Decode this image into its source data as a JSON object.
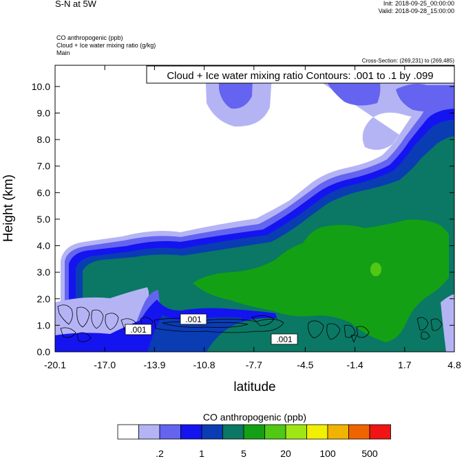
{
  "header": {
    "title": "S-N at 5W",
    "init": "Init: 2018-09-25_00:00:00",
    "valid": "Valid: 2018-09-28_15:00:00",
    "field_1": "CO anthropogenic   (ppb)",
    "field_2": "Cloud + Ice water mixing ratio   (g/kg)",
    "field_3": "Main",
    "cross_section": "Cross-Section: (269,231) to (269,485)"
  },
  "chart_data": {
    "type": "heatmap",
    "contour_title": "Cloud + Ice water mixing ratio Contours: .001 to .1 by .099",
    "xlabel": "latitude",
    "ylabel": "Height (km)",
    "xlim": [
      -20.1,
      4.8
    ],
    "ylim": [
      0.0,
      10.8
    ],
    "x_ticks": [
      "-20.1",
      "-17.0",
      "-13.9",
      "-10.8",
      "-7.7",
      "-4.5",
      "-1.4",
      "1.7",
      "4.8"
    ],
    "y_ticks": [
      "0.0",
      "1.0",
      "2.0",
      "3.0",
      "4.0",
      "5.0",
      "6.0",
      "7.0",
      "8.0",
      "9.0",
      "10.0"
    ],
    "contour_labels": [
      ".001",
      ".001",
      ".001"
    ],
    "colorbar": {
      "title": "CO anthropogenic  (ppb)",
      "colors": [
        "#ffffff",
        "#b4b4f5",
        "#6464f0",
        "#1414f0",
        "#0a3cb4",
        "#0a7864",
        "#14a014",
        "#50c814",
        "#a0e614",
        "#f0f000",
        "#f0b400",
        "#f06400",
        "#f01414"
      ],
      "labels": [
        ".2",
        "1",
        "5",
        "20",
        "100",
        "500"
      ]
    }
  }
}
